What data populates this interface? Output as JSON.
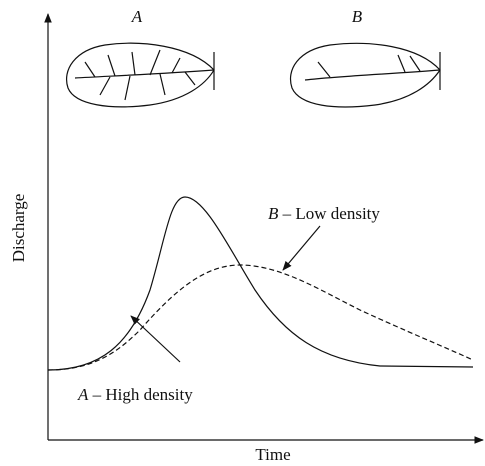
{
  "leaves": [
    {
      "label": "A"
    },
    {
      "label": "B"
    }
  ],
  "axes": {
    "y_label": "Discharge",
    "x_label": "Time"
  },
  "curves": [
    {
      "letter": "A",
      "label": "– High density"
    },
    {
      "letter": "B",
      "label": "– Low density"
    }
  ]
}
